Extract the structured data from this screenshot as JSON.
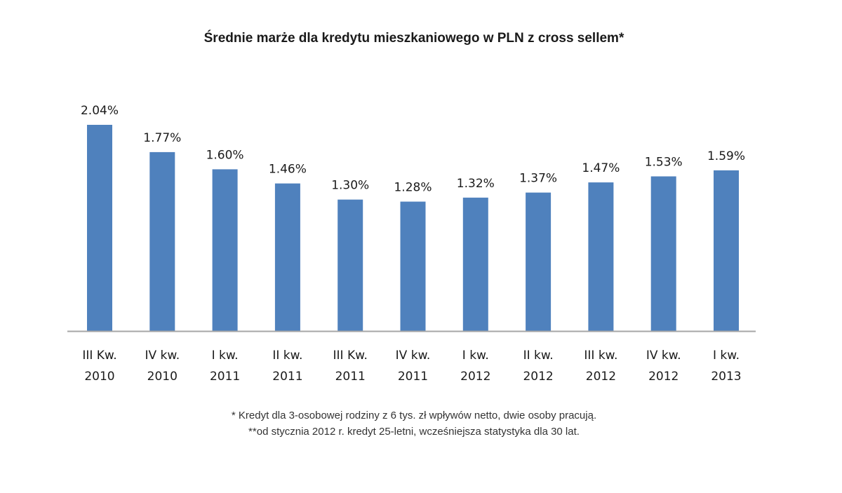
{
  "chart_data": {
    "type": "bar",
    "title": "Średnie marże dla kredytu mieszkaniowego w PLN z cross sellem*",
    "xlabel": "",
    "ylabel": "",
    "categories": [
      [
        "III Kw.",
        "2010"
      ],
      [
        "IV kw.",
        "2010"
      ],
      [
        "I kw.",
        "2011"
      ],
      [
        "II kw.",
        "2011"
      ],
      [
        "III Kw.",
        "2011"
      ],
      [
        "IV kw.",
        "2011"
      ],
      [
        "I kw.",
        "2012"
      ],
      [
        "II kw.",
        "2012"
      ],
      [
        "III kw.",
        "2012"
      ],
      [
        "IV kw.",
        "2012"
      ],
      [
        "I kw.",
        "2013"
      ]
    ],
    "values": [
      2.04,
      1.77,
      1.6,
      1.46,
      1.3,
      1.28,
      1.32,
      1.37,
      1.47,
      1.53,
      1.59
    ],
    "value_labels": [
      "2.04%",
      "1.77%",
      "1.60%",
      "1.46%",
      "1.30%",
      "1.28%",
      "1.32%",
      "1.37%",
      "1.47%",
      "1.53%",
      "1.59%"
    ],
    "ylim": [
      0,
      2.04
    ],
    "grid": false,
    "legend": "none",
    "colors": {
      "bar": "#4f81bd",
      "axis": "#a6a6a6",
      "text": "#1a1a1a"
    }
  },
  "footnotes": [
    "* Kredyt dla 3-osobowej rodziny z 6 tys. zł wpływów netto, dwie osoby pracują.",
    "**od stycznia 2012 r. kredyt 25-letni, wcześniejsza statystyka dla 30 lat."
  ]
}
